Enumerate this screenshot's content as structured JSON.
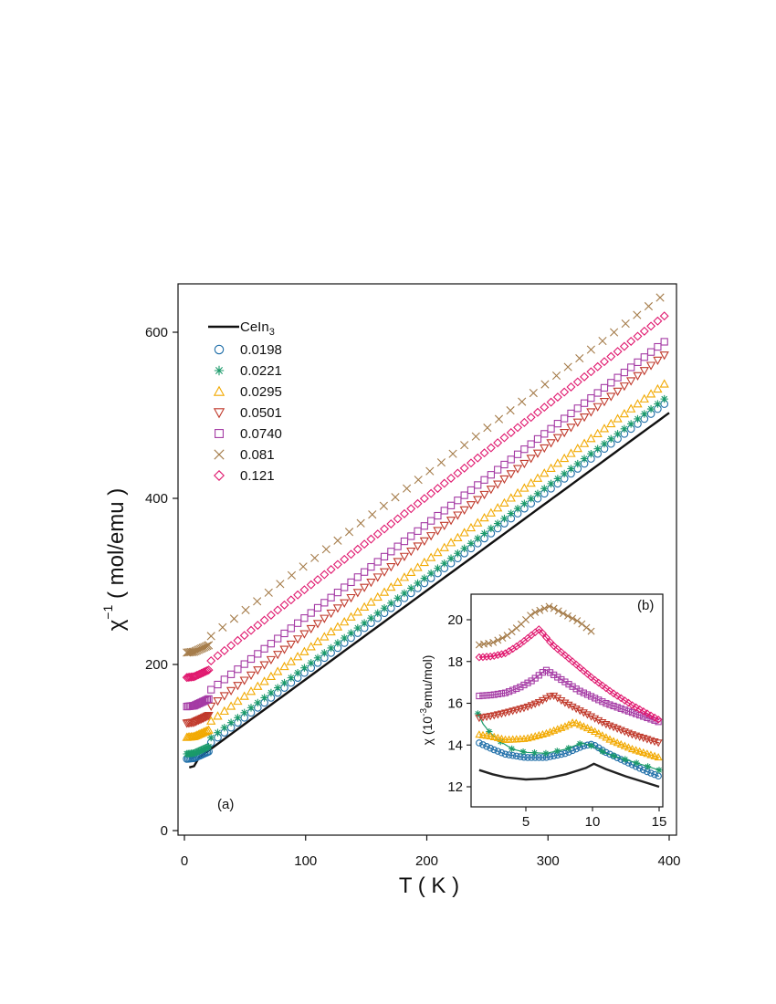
{
  "chart_data": {
    "type": "scatter",
    "title": "",
    "panel_label": "(a)",
    "xlabel": "T ( K )",
    "ylabel_base": "χ",
    "ylabel_sup": "−1",
    "ylabel_rest": " ( mol/emu )",
    "xlim": [
      -5,
      405
    ],
    "ylim": [
      -5,
      655
    ],
    "xticks": [
      0,
      100,
      200,
      300,
      400
    ],
    "yticks": [
      0,
      200,
      400,
      600
    ],
    "legend_position": "top-left",
    "reference": {
      "name": "CeIn",
      "name_sub": "3",
      "color": "#111111",
      "y0": 75,
      "slope": 1.07
    },
    "series": [
      {
        "name": "0.0198",
        "marker": "circle",
        "color": "#1f6ea8",
        "y0": 82,
        "slope": 1.09
      },
      {
        "name": "0.0221",
        "marker": "asterisk",
        "color": "#1a9a6a",
        "y0": 88,
        "slope": 1.09
      },
      {
        "name": "0.0295",
        "marker": "triangle",
        "color": "#f2a900",
        "y0": 108,
        "slope": 1.085
      },
      {
        "name": "0.0501",
        "marker": "invtriangle",
        "color": "#c0392b",
        "y0": 125,
        "slope": 1.13
      },
      {
        "name": "0.0740",
        "marker": "square",
        "color": "#a43aa4",
        "y0": 145,
        "slope": 1.12
      },
      {
        "name": "0.081",
        "marker": "cross",
        "color": "#a57c4a",
        "y0": 210,
        "slope": 1.1
      },
      {
        "name": "0.121",
        "marker": "diamond",
        "color": "#e0196f",
        "y0": 180,
        "slope": 1.11
      }
    ],
    "inset": {
      "panel_label": "(b)",
      "ylabel": "χ (10",
      "ylabel_sup": "-3",
      "ylabel_rest": "emu/mol)",
      "xlim": [
        0.8,
        15.5
      ],
      "ylim": [
        11.6,
        21.1
      ],
      "xticks": [
        5,
        10,
        15
      ],
      "yticks": [
        12,
        14,
        16,
        18,
        20
      ],
      "curves": [
        {
          "name": "CeIn3",
          "color": "#222222",
          "marker": "none",
          "points": [
            [
              1.5,
              12.8
            ],
            [
              2.5,
              12.6
            ],
            [
              3.5,
              12.45
            ],
            [
              5,
              12.35
            ],
            [
              6.5,
              12.4
            ],
            [
              8,
              12.6
            ],
            [
              9.5,
              12.9
            ],
            [
              10.1,
              13.1
            ],
            [
              11,
              12.85
            ],
            [
              12.5,
              12.5
            ],
            [
              14,
              12.2
            ],
            [
              15,
              12.0
            ]
          ]
        },
        {
          "name": "0.0198",
          "color": "#1f6ea8",
          "marker": "circle",
          "points": [
            [
              1.5,
              14.1
            ],
            [
              2.5,
              13.8
            ],
            [
              3.5,
              13.55
            ],
            [
              5,
              13.4
            ],
            [
              6.5,
              13.4
            ],
            [
              8,
              13.6
            ],
            [
              9.3,
              13.95
            ],
            [
              10,
              14.05
            ],
            [
              11,
              13.65
            ],
            [
              12.5,
              13.2
            ],
            [
              14,
              12.75
            ],
            [
              15,
              12.5
            ]
          ]
        },
        {
          "name": "0.0221",
          "color": "#1a9a6a",
          "marker": "asterisk",
          "points": [
            [
              1.4,
              15.5
            ],
            [
              1.8,
              15.0
            ],
            [
              2.3,
              14.6
            ],
            [
              3,
              14.2
            ],
            [
              4,
              13.8
            ],
            [
              5,
              13.65
            ],
            [
              6.5,
              13.6
            ],
            [
              8,
              13.8
            ],
            [
              9.2,
              14.1
            ],
            [
              10,
              13.95
            ],
            [
              11,
              13.6
            ],
            [
              12.5,
              13.3
            ],
            [
              14,
              13.0
            ],
            [
              15,
              12.8
            ]
          ]
        },
        {
          "name": "0.0295",
          "color": "#f2a900",
          "marker": "triangle",
          "points": [
            [
              1.5,
              14.5
            ],
            [
              2.5,
              14.4
            ],
            [
              3.5,
              14.25
            ],
            [
              5,
              14.3
            ],
            [
              6.5,
              14.55
            ],
            [
              8,
              14.9
            ],
            [
              8.6,
              15.1
            ],
            [
              10,
              14.7
            ],
            [
              11.5,
              14.2
            ],
            [
              13,
              13.8
            ],
            [
              15,
              13.4
            ]
          ]
        },
        {
          "name": "0.0501",
          "color": "#c0392b",
          "marker": "invtriangle",
          "points": [
            [
              1.5,
              15.3
            ],
            [
              2.5,
              15.4
            ],
            [
              3.5,
              15.55
            ],
            [
              5,
              15.8
            ],
            [
              6,
              16.05
            ],
            [
              7,
              16.4
            ],
            [
              8,
              16.0
            ],
            [
              9.5,
              15.5
            ],
            [
              11,
              15.0
            ],
            [
              13,
              14.5
            ],
            [
              15,
              14.1
            ]
          ]
        },
        {
          "name": "0.0740",
          "color": "#a43aa4",
          "marker": "square",
          "points": [
            [
              1.5,
              16.35
            ],
            [
              2.5,
              16.4
            ],
            [
              3.5,
              16.5
            ],
            [
              4.5,
              16.75
            ],
            [
              5.5,
              17.1
            ],
            [
              6.5,
              17.6
            ],
            [
              7.5,
              17.2
            ],
            [
              9,
              16.6
            ],
            [
              11,
              16.0
            ],
            [
              13,
              15.55
            ],
            [
              15,
              15.1
            ]
          ]
        },
        {
          "name": "0.121",
          "color": "#e0196f",
          "marker": "diamond",
          "points": [
            [
              1.5,
              18.2
            ],
            [
              2.5,
              18.25
            ],
            [
              3.5,
              18.4
            ],
            [
              4.5,
              18.8
            ],
            [
              5.5,
              19.3
            ],
            [
              6,
              19.55
            ],
            [
              7,
              18.8
            ],
            [
              8.5,
              18.0
            ],
            [
              10,
              17.2
            ],
            [
              11.5,
              16.5
            ],
            [
              13,
              15.9
            ],
            [
              15,
              15.2
            ]
          ]
        },
        {
          "name": "0.081",
          "color": "#a57c4a",
          "marker": "cross",
          "points": [
            [
              1.5,
              18.8
            ],
            [
              2.5,
              18.9
            ],
            [
              3.5,
              19.2
            ],
            [
              4.5,
              19.7
            ],
            [
              5.5,
              20.3
            ],
            [
              6.8,
              20.65
            ],
            [
              7.8,
              20.3
            ],
            [
              9,
              19.9
            ],
            [
              10,
              19.4
            ]
          ]
        }
      ]
    }
  }
}
